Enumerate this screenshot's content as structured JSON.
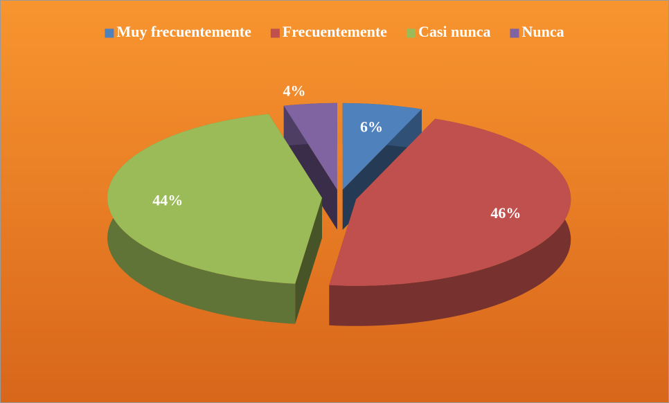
{
  "chart_data": {
    "type": "pie",
    "categories": [
      "Muy frecuentemente",
      "Frecuentemente",
      "Casi nunca",
      "Nunca"
    ],
    "values": [
      6,
      46,
      44,
      4
    ],
    "value_labels": [
      "6%",
      "46%",
      "44%",
      "4%"
    ],
    "colors": [
      "#4f81bd",
      "#c0504d",
      "#9bbb59",
      "#8064a2"
    ],
    "legend": "top"
  }
}
